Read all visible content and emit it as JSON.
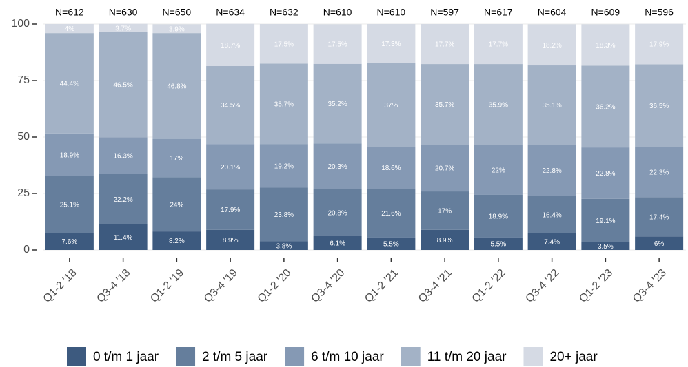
{
  "chart_data": {
    "type": "stacked_bar",
    "categories": [
      "Q1-2 '18",
      "Q3-4 '18",
      "Q1-2 '19",
      "Q3-4 '19",
      "Q1-2 '20",
      "Q3-4 '20",
      "Q1-2 '21",
      "Q3-4 '21",
      "Q1-2 '22",
      "Q3-4 '22",
      "Q1-2 '23",
      "Q3-4 '23"
    ],
    "top_labels": [
      "N=612",
      "N=630",
      "N=650",
      "N=634",
      "N=632",
      "N=610",
      "N=610",
      "N=597",
      "N=617",
      "N=604",
      "N=609",
      "N=596"
    ],
    "series": [
      {
        "name": "0 t/m 1 jaar",
        "color": "#3d5a7f",
        "values": [
          7.6,
          11.4,
          8.2,
          8.9,
          3.8,
          6.1,
          5.5,
          8.9,
          5.5,
          7.4,
          3.5,
          6
        ],
        "value_labels": [
          "7.6%",
          "11.4%",
          "8.2%",
          "8.9%",
          "3.8%",
          "6.1%",
          "5.5%",
          "8.9%",
          "5.5%",
          "7.4%",
          "3.5%",
          "6%"
        ]
      },
      {
        "name": "2 t/m 5 jaar",
        "color": "#657e9c",
        "values": [
          25.1,
          22.2,
          24,
          17.9,
          23.8,
          20.8,
          21.6,
          17,
          18.9,
          16.4,
          19.1,
          17.4
        ],
        "value_labels": [
          "25.1%",
          "22.2%",
          "24%",
          "17.9%",
          "23.8%",
          "20.8%",
          "21.6%",
          "17%",
          "18.9%",
          "16.4%",
          "19.1%",
          "17.4%"
        ]
      },
      {
        "name": "6 t/m 10 jaar",
        "color": "#8599b4",
        "values": [
          18.9,
          16.3,
          17,
          20.1,
          19.2,
          20.3,
          18.6,
          20.7,
          22,
          22.8,
          22.8,
          22.3
        ],
        "value_labels": [
          "18.9%",
          "16.3%",
          "17%",
          "20.1%",
          "19.2%",
          "20.3%",
          "18.6%",
          "20.7%",
          "22%",
          "22.8%",
          "22.8%",
          "22.3%"
        ]
      },
      {
        "name": "11 t/m 20 jaar",
        "color": "#a3b2c6",
        "values": [
          44.4,
          46.5,
          46.8,
          34.5,
          35.7,
          35.2,
          37,
          35.7,
          35.9,
          35.1,
          36.2,
          36.5
        ],
        "value_labels": [
          "44.4%",
          "46.5%",
          "46.8%",
          "34.5%",
          "35.7%",
          "35.2%",
          "37%",
          "35.7%",
          "35.9%",
          "35.1%",
          "36.2%",
          "36.5%"
        ]
      },
      {
        "name": "20+ jaar",
        "color": "#d5dae4",
        "values": [
          4,
          3.7,
          3.9,
          18.7,
          17.5,
          17.5,
          17.3,
          17.7,
          17.7,
          18.2,
          18.3,
          17.9
        ],
        "value_labels": [
          "4%",
          "3.7%",
          "3.9%",
          "18.7%",
          "17.5%",
          "17.5%",
          "17.3%",
          "17.7%",
          "17.7%",
          "18.2%",
          "18.3%",
          "17.9%"
        ]
      }
    ],
    "ylim": [
      0,
      100
    ],
    "yticks": [
      0,
      25,
      50,
      75,
      100
    ],
    "grid": true,
    "legend": "bottom"
  }
}
